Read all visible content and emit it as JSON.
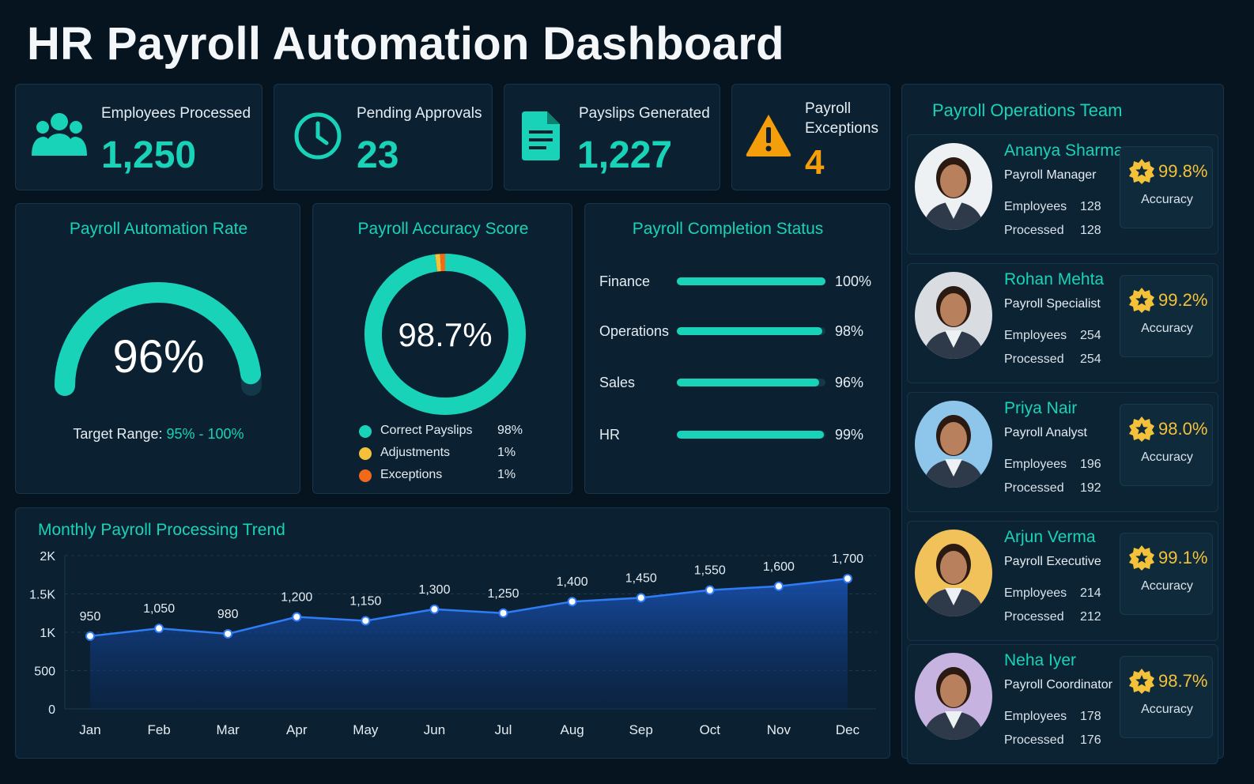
{
  "title": "HR Payroll Automation Dashboard",
  "colors": {
    "accent": "#19d3b8",
    "warning": "#f59e0b",
    "star": "#f3c23a",
    "background": "#06141f",
    "panel": "#0b2030"
  },
  "kpis": [
    {
      "label": "Employees Processed",
      "value": "1,250",
      "icon": "people-icon"
    },
    {
      "label": "Pending Approvals",
      "value": "23",
      "icon": "clock-icon"
    },
    {
      "label": "Payslips Generated",
      "value": "1,227",
      "icon": "document-icon"
    },
    {
      "label": "Payroll Exceptions",
      "label_line1": "Payroll",
      "label_line2": "Exceptions",
      "value": "4",
      "icon": "warning-icon"
    }
  ],
  "automation": {
    "title": "Payroll Automation Rate",
    "value": "96%",
    "fraction": 0.96,
    "target_label": "Target Range: ",
    "target_value": "95% - 100%"
  },
  "accuracy": {
    "title": "Payroll Accuracy Score",
    "value": "98.7%",
    "legend": [
      {
        "label": "Correct Payslips",
        "pct": "98%",
        "color": "#19d3b8",
        "share": 98
      },
      {
        "label": "Adjustments",
        "pct": "1%",
        "color": "#f3c23a",
        "share": 1
      },
      {
        "label": "Exceptions",
        "pct": "1%",
        "color": "#f06a1a",
        "share": 1
      }
    ]
  },
  "completion": {
    "title": "Payroll Completion Status",
    "rows": [
      {
        "label": "Finance",
        "pct": "100%",
        "value": 100
      },
      {
        "label": "Operations",
        "pct": "98%",
        "value": 98
      },
      {
        "label": "Sales",
        "pct": "96%",
        "value": 96
      },
      {
        "label": "HR",
        "pct": "99%",
        "value": 99
      }
    ]
  },
  "trend": {
    "title": "Monthly Payroll Processing Trend",
    "y_ticks": [
      "0",
      "500",
      "1K",
      "1.5K",
      "2K"
    ]
  },
  "chart_data": {
    "type": "area",
    "title": "Monthly Payroll Processing Trend",
    "categories": [
      "Jan",
      "Feb",
      "Mar",
      "Apr",
      "May",
      "Jun",
      "Jul",
      "Aug",
      "Sep",
      "Oct",
      "Nov",
      "Dec"
    ],
    "values": [
      950,
      1050,
      980,
      1200,
      1150,
      1300,
      1250,
      1400,
      1450,
      1550,
      1600,
      1700
    ],
    "labels": [
      "950",
      "1,050",
      "980",
      "1,200",
      "1,150",
      "1,300",
      "1,250",
      "1,400",
      "1,450",
      "1,550",
      "1,600",
      "1,700"
    ],
    "ylim": [
      0,
      2000
    ],
    "grid": true
  },
  "team": {
    "title": "Payroll Operations Team",
    "employees_label": "Employees",
    "processed_label": "Processed",
    "accuracy_label": "Accuracy",
    "members": [
      {
        "name": "Ananya Sharma",
        "role": "Payroll Manager",
        "employees": "128",
        "processed": "128",
        "accuracy": "99.8%",
        "avatar_bg": "#eef1f4"
      },
      {
        "name": "Rohan Mehta",
        "role": "Payroll Specialist",
        "employees": "254",
        "processed": "254",
        "accuracy": "99.2%",
        "avatar_bg": "#d9dde2"
      },
      {
        "name": "Priya Nair",
        "role": "Payroll Analyst",
        "employees": "196",
        "processed": "192",
        "accuracy": "98.0%",
        "avatar_bg": "#8ec5ea"
      },
      {
        "name": "Arjun Verma",
        "role": "Payroll Executive",
        "employees": "214",
        "processed": "212",
        "accuracy": "99.1%",
        "avatar_bg": "#f2c25a"
      },
      {
        "name": "Neha Iyer",
        "role": "Payroll Coordinator",
        "employees": "178",
        "processed": "176",
        "accuracy": "98.7%",
        "avatar_bg": "#c7b3e0"
      }
    ]
  }
}
